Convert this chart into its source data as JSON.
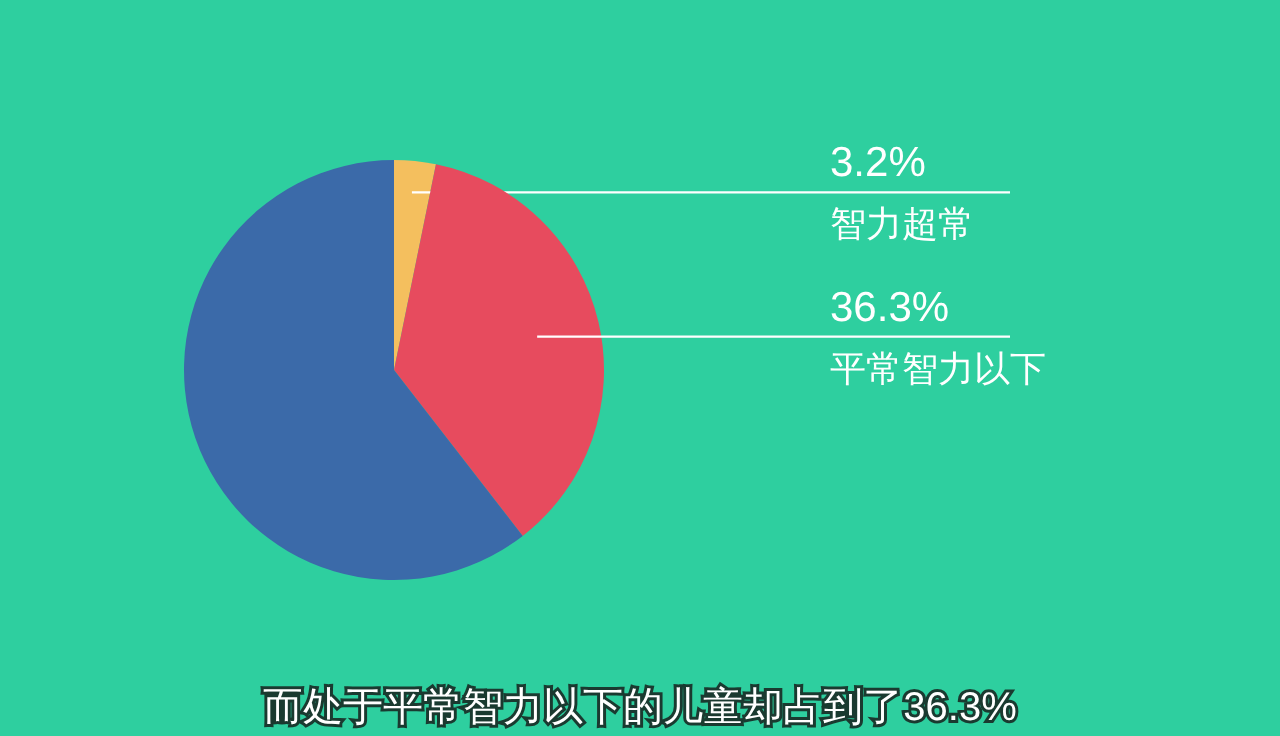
{
  "chart_data": {
    "type": "pie",
    "categories": [
      "智力超常",
      "平常智力以下",
      null
    ],
    "values": [
      3.2,
      36.3,
      60.5
    ],
    "colors": [
      "#f4bf5e",
      "#e74b5e",
      "#3b6aa9"
    ],
    "value_labels": [
      "3.2%",
      "36.3%",
      null
    ],
    "annotations": [
      "而处于平常智力以下的儿童却占到了36.3%"
    ]
  }
}
